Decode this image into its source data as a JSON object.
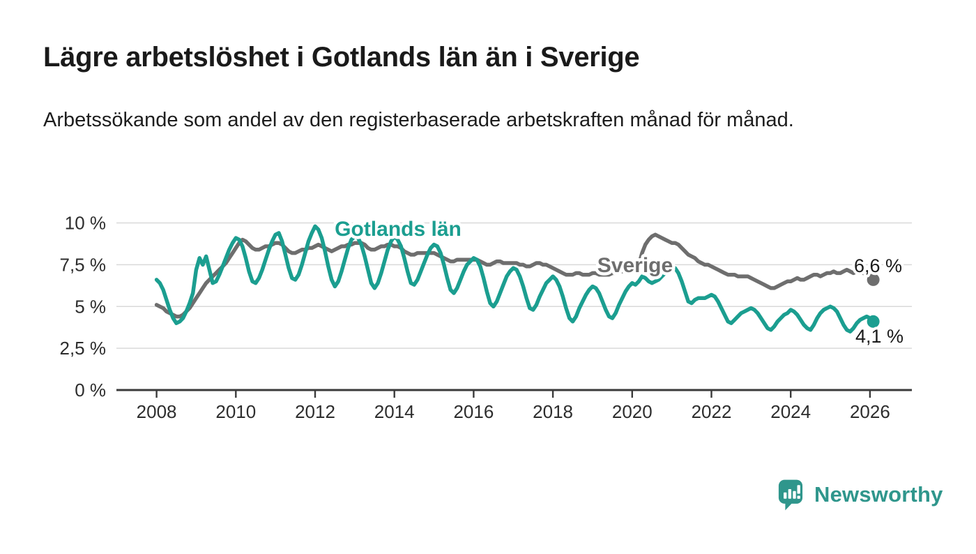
{
  "page": {
    "title": "Lägre arbetslöshet i Gotlands län än i Sverige",
    "subtitle": "Arbetssökande som andel av den registerbaserade arbetskraften månad för månad."
  },
  "chart_data": {
    "type": "line",
    "title": "Lägre arbetslöshet i Gotlands län än i Sverige",
    "subtitle": "Arbetssökande som andel av den registerbaserade arbetskraften månad för månad.",
    "x_unit": "month",
    "x_start": {
      "year": 2008,
      "month": 1
    },
    "x_end": {
      "year": 2026,
      "month": 2
    },
    "xlim": [
      2007.0,
      2027.05
    ],
    "ylim": [
      0,
      10.5
    ],
    "grid": "horizontal",
    "legend_position": "inline-annotations",
    "y_ticks": [
      {
        "value": 0,
        "label": "0 %"
      },
      {
        "value": 2.5,
        "label": "2,5 %"
      },
      {
        "value": 5,
        "label": "5 %"
      },
      {
        "value": 7.5,
        "label": "7,5 %"
      },
      {
        "value": 10,
        "label": "10 %"
      }
    ],
    "x_ticks": [
      {
        "value": 2008,
        "label": "2008"
      },
      {
        "value": 2010,
        "label": "2010"
      },
      {
        "value": 2012,
        "label": "2012"
      },
      {
        "value": 2014,
        "label": "2014"
      },
      {
        "value": 2016,
        "label": "2016"
      },
      {
        "value": 2018,
        "label": "2018"
      },
      {
        "value": 2020,
        "label": "2020"
      },
      {
        "value": 2022,
        "label": "2022"
      },
      {
        "value": 2024,
        "label": "2024"
      },
      {
        "value": 2026,
        "label": "2026"
      }
    ],
    "series": [
      {
        "name": "Sverige",
        "annotation": "Sverige",
        "end_label": "6,6 %",
        "last_value": 6.6,
        "color": "#6e6e6e",
        "values": [
          5.1,
          5.0,
          4.9,
          4.7,
          4.6,
          4.5,
          4.4,
          4.4,
          4.5,
          4.7,
          4.9,
          5.2,
          5.5,
          5.8,
          6.1,
          6.4,
          6.6,
          6.8,
          7.0,
          7.2,
          7.4,
          7.6,
          7.9,
          8.2,
          8.5,
          8.8,
          9.0,
          8.9,
          8.7,
          8.5,
          8.4,
          8.4,
          8.5,
          8.6,
          8.6,
          8.7,
          8.8,
          8.8,
          8.7,
          8.5,
          8.3,
          8.2,
          8.2,
          8.3,
          8.4,
          8.4,
          8.5,
          8.5,
          8.6,
          8.7,
          8.6,
          8.5,
          8.4,
          8.3,
          8.4,
          8.5,
          8.6,
          8.6,
          8.7,
          8.7,
          8.8,
          8.8,
          8.8,
          8.7,
          8.5,
          8.4,
          8.4,
          8.5,
          8.6,
          8.6,
          8.7,
          8.7,
          8.6,
          8.6,
          8.5,
          8.3,
          8.2,
          8.1,
          8.1,
          8.2,
          8.2,
          8.2,
          8.2,
          8.2,
          8.2,
          8.1,
          8.0,
          7.9,
          7.8,
          7.7,
          7.7,
          7.8,
          7.8,
          7.8,
          7.8,
          7.8,
          7.8,
          7.8,
          7.7,
          7.6,
          7.5,
          7.5,
          7.6,
          7.7,
          7.7,
          7.6,
          7.6,
          7.6,
          7.6,
          7.6,
          7.5,
          7.5,
          7.4,
          7.4,
          7.5,
          7.6,
          7.6,
          7.5,
          7.5,
          7.4,
          7.3,
          7.2,
          7.1,
          7.0,
          6.9,
          6.9,
          6.9,
          7.0,
          7.0,
          6.9,
          6.9,
          6.9,
          7.0,
          7.0,
          6.9,
          6.9,
          6.9,
          6.9,
          7.0,
          7.0,
          7.1,
          7.1,
          7.1,
          7.1,
          7.1,
          7.2,
          7.5,
          8.2,
          8.7,
          9.0,
          9.2,
          9.3,
          9.2,
          9.1,
          9.0,
          8.9,
          8.8,
          8.8,
          8.7,
          8.5,
          8.3,
          8.1,
          8.0,
          7.9,
          7.7,
          7.6,
          7.5,
          7.5,
          7.4,
          7.3,
          7.2,
          7.1,
          7.0,
          6.9,
          6.9,
          6.9,
          6.8,
          6.8,
          6.8,
          6.8,
          6.7,
          6.6,
          6.5,
          6.4,
          6.3,
          6.2,
          6.1,
          6.1,
          6.2,
          6.3,
          6.4,
          6.5,
          6.5,
          6.6,
          6.7,
          6.6,
          6.6,
          6.7,
          6.8,
          6.9,
          6.9,
          6.8,
          6.9,
          7.0,
          7.0,
          7.1,
          7.0,
          7.0,
          7.1,
          7.2,
          7.1,
          7.0,
          7.1,
          7.1,
          7.0,
          6.9,
          6.8,
          6.6
        ]
      },
      {
        "name": "Gotlands län",
        "annotation": "Gotlands län",
        "end_label": "4,1 %",
        "last_value": 4.1,
        "color": "#1b9e90",
        "values": [
          6.6,
          6.4,
          6.0,
          5.4,
          4.8,
          4.3,
          4.0,
          4.1,
          4.3,
          4.7,
          5.2,
          5.8,
          7.2,
          7.9,
          7.5,
          8.0,
          7.2,
          6.4,
          6.5,
          6.9,
          7.4,
          7.9,
          8.4,
          8.8,
          9.1,
          9.0,
          8.6,
          7.9,
          7.1,
          6.5,
          6.4,
          6.7,
          7.2,
          7.8,
          8.4,
          8.9,
          9.3,
          9.4,
          8.9,
          8.1,
          7.3,
          6.7,
          6.6,
          6.9,
          7.5,
          8.2,
          8.9,
          9.4,
          9.8,
          9.6,
          9.1,
          8.3,
          7.4,
          6.6,
          6.2,
          6.5,
          7.1,
          7.8,
          8.5,
          9.0,
          9.2,
          9.1,
          8.7,
          8.0,
          7.2,
          6.4,
          6.1,
          6.4,
          7.0,
          7.7,
          8.4,
          8.9,
          9.2,
          9.0,
          8.6,
          7.9,
          7.1,
          6.4,
          6.3,
          6.6,
          7.1,
          7.6,
          8.1,
          8.5,
          8.7,
          8.6,
          8.2,
          7.5,
          6.7,
          6.0,
          5.8,
          6.1,
          6.6,
          7.1,
          7.5,
          7.7,
          7.9,
          7.8,
          7.4,
          6.7,
          5.9,
          5.2,
          5.0,
          5.3,
          5.8,
          6.3,
          6.8,
          7.1,
          7.3,
          7.2,
          6.8,
          6.2,
          5.5,
          4.9,
          4.8,
          5.1,
          5.6,
          6.0,
          6.4,
          6.6,
          6.8,
          6.6,
          6.2,
          5.6,
          4.9,
          4.3,
          4.1,
          4.4,
          4.9,
          5.3,
          5.7,
          6.0,
          6.2,
          6.1,
          5.8,
          5.3,
          4.8,
          4.4,
          4.3,
          4.6,
          5.1,
          5.5,
          5.9,
          6.2,
          6.4,
          6.3,
          6.5,
          6.8,
          6.7,
          6.5,
          6.4,
          6.5,
          6.6,
          6.8,
          7.0,
          7.2,
          7.3,
          7.3,
          7.0,
          6.5,
          5.9,
          5.3,
          5.2,
          5.4,
          5.5,
          5.5,
          5.5,
          5.6,
          5.7,
          5.6,
          5.3,
          4.9,
          4.5,
          4.1,
          4.0,
          4.2,
          4.4,
          4.6,
          4.7,
          4.8,
          4.9,
          4.8,
          4.6,
          4.3,
          4.0,
          3.7,
          3.6,
          3.8,
          4.1,
          4.3,
          4.5,
          4.6,
          4.8,
          4.7,
          4.5,
          4.2,
          3.9,
          3.7,
          3.6,
          3.9,
          4.3,
          4.6,
          4.8,
          4.9,
          5.0,
          4.9,
          4.7,
          4.3,
          3.9,
          3.6,
          3.5,
          3.7,
          4.0,
          4.2,
          4.3,
          4.4,
          4.3,
          4.1
        ]
      }
    ]
  },
  "branding": {
    "name": "Newsworthy",
    "logo_icon": "speech-bubble-bar-chart",
    "color": "#2f968c"
  }
}
